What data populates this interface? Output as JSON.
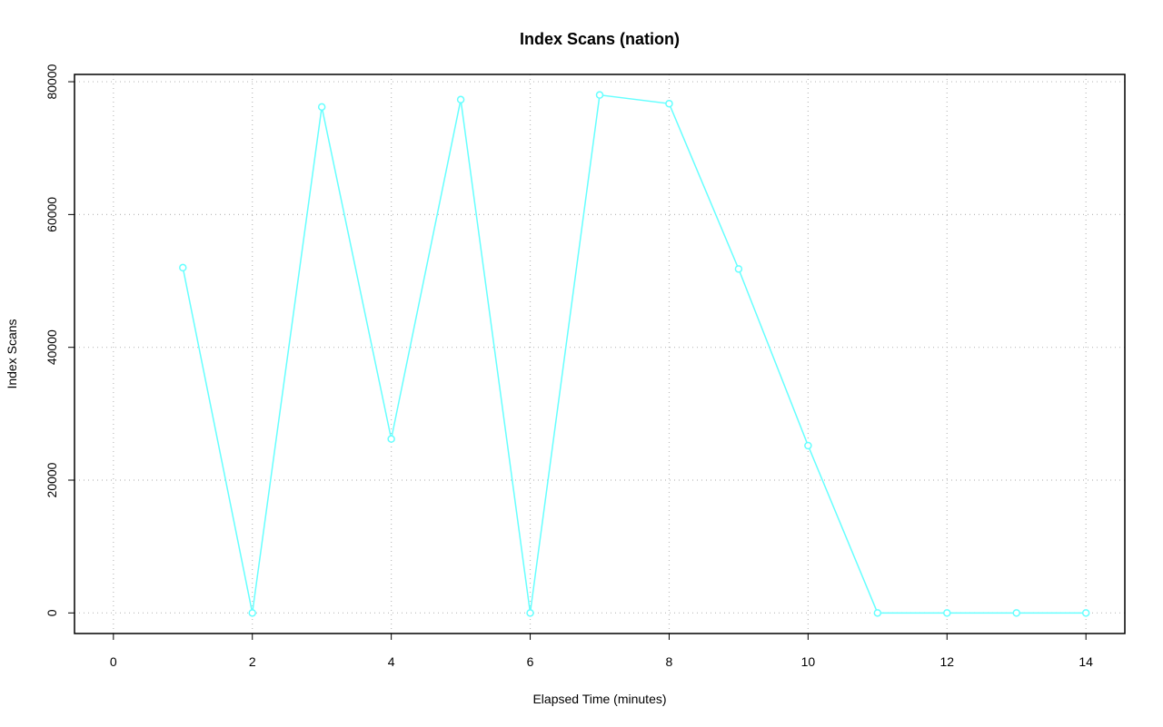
{
  "chart_data": {
    "type": "line",
    "title": "Index Scans (nation)",
    "x_label": "Elapsed Time (minutes)",
    "y_label": "Index Scans",
    "x": [
      1,
      2,
      3,
      4,
      5,
      6,
      7,
      8,
      9,
      10,
      11,
      12,
      13,
      14
    ],
    "series": [
      {
        "color": "#66ffff",
        "values": [
          52000,
          0,
          76200,
          26200,
          77300,
          0,
          78000,
          76700,
          51800,
          25200,
          0,
          0,
          0,
          0
        ]
      }
    ],
    "xlim": [
      -0.56,
      14.56
    ],
    "xticks": [
      0,
      2,
      4,
      6,
      8,
      10,
      12,
      14
    ],
    "ylim": [
      -3100,
      81100
    ],
    "yticks": [
      0,
      20000,
      40000,
      60000,
      80000
    ],
    "grid": true
  }
}
